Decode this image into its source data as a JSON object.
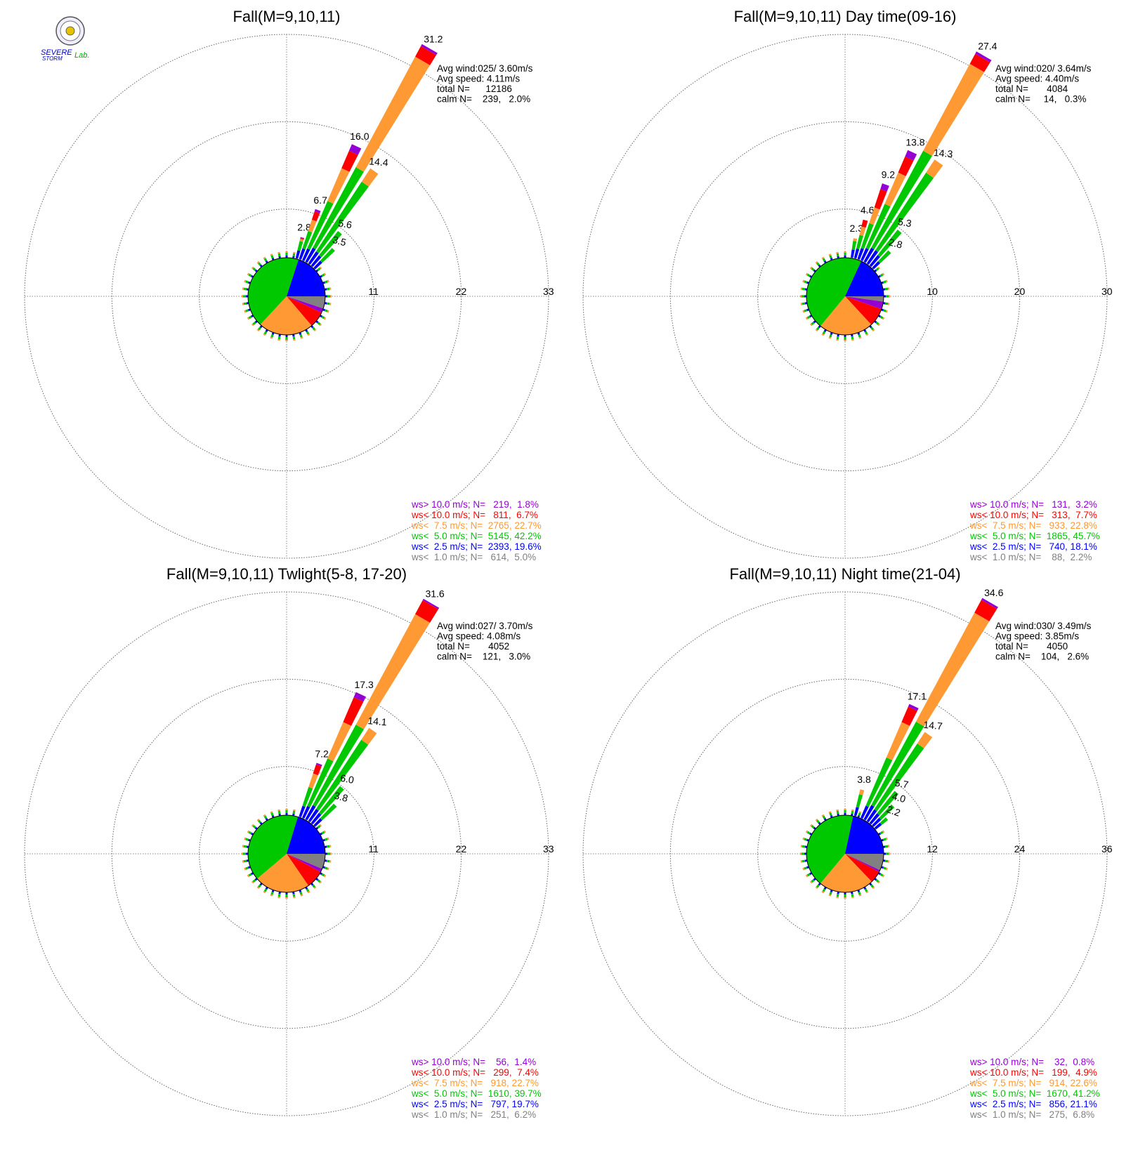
{
  "logo": {
    "text_top": "SEVERE",
    "text_bottom": "STORM",
    "text_lab": "Lab.",
    "icon": "seal-icon"
  },
  "colors": {
    "gt10": "#9400d3",
    "lt10": "#ff0000",
    "lt75": "#ff9933",
    "lt5": "#00c800",
    "lt25": "#0000ff",
    "lt1": "#808080"
  },
  "chart_data": [
    {
      "type": "polar-bar",
      "title": "Fall(M=9,10,11)",
      "rticks": [
        "11",
        "22",
        "33"
      ],
      "rmax": 33,
      "stats": [
        "Avg wind:025/ 3.60m/s",
        "Avg speed: 4.11m/s",
        "total N=      12186",
        "calm N=    239,   2.0%"
      ],
      "legend": [
        {
          "key": "gt10",
          "text": "ws> 10.0 m/s; N=   219,  1.8%"
        },
        {
          "key": "lt10",
          "text": "ws< 10.0 m/s; N=   811,  6.7%"
        },
        {
          "key": "lt75",
          "text": "ws<  7.5 m/s; N=  2765, 22.7%"
        },
        {
          "key": "lt5",
          "text": "ws<  5.0 m/s; N=  5145, 42.2%"
        },
        {
          "key": "lt25",
          "text": "ws<  2.5 m/s; N=  2393, 19.6%"
        },
        {
          "key": "lt1",
          "text": "ws<  1.0 m/s; N=   614,  5.0%"
        }
      ],
      "petals": [
        {
          "dir": 15,
          "total": 2.8,
          "parts": {
            "lt1": 0.1,
            "lt25": 1.0,
            "lt5": 1.2,
            "lt75": 0.3,
            "lt10": 0.15,
            "gt10": 0.05
          }
        },
        {
          "dir": 20,
          "total": 6.7,
          "parts": {
            "lt1": 0.1,
            "lt25": 1.4,
            "lt5": 2.3,
            "lt75": 1.5,
            "lt10": 1.1,
            "gt10": 0.3
          }
        },
        {
          "dir": 25,
          "total": 16.0,
          "parts": {
            "lt1": 0.1,
            "lt25": 1.6,
            "lt5": 6.5,
            "lt75": 4.5,
            "lt10": 2.4,
            "gt10": 0.9
          }
        },
        {
          "dir": 30,
          "total": 31.2,
          "parts": {
            "lt1": 0.1,
            "lt25": 2.0,
            "lt5": 11.5,
            "lt75": 15.8,
            "lt10": 1.5,
            "gt10": 0.3
          }
        },
        {
          "dir": 35,
          "total": 14.4,
          "parts": {
            "lt1": 0.1,
            "lt25": 1.8,
            "lt5": 10.5,
            "lt75": 2.0
          }
        },
        {
          "dir": 40,
          "total": 5.6,
          "parts": {
            "lt1": 0.1,
            "lt25": 1.6,
            "lt5": 3.9
          }
        },
        {
          "dir": 45,
          "total": 3.5,
          "parts": {
            "lt1": 0.1,
            "lt25": 1.2,
            "lt5": 2.2
          }
        }
      ],
      "pie_order": [
        "lt1",
        "gt10",
        "lt10",
        "lt75",
        "lt5",
        "lt25"
      ]
    },
    {
      "type": "polar-bar",
      "title": "Fall(M=9,10,11) Day time(09-16)",
      "rticks": [
        "10",
        "20",
        "30"
      ],
      "rmax": 30,
      "stats": [
        "Avg wind:020/ 3.64m/s",
        "Avg speed: 4.40m/s",
        "total N=       4084",
        "calm N=     14,   0.3%"
      ],
      "legend": [
        {
          "key": "gt10",
          "text": "ws> 10.0 m/s; N=   131,  3.2%"
        },
        {
          "key": "lt10",
          "text": "ws< 10.0 m/s; N=   313,  7.7%"
        },
        {
          "key": "lt75",
          "text": "ws<  7.5 m/s; N=   933, 22.8%"
        },
        {
          "key": "lt5",
          "text": "ws<  5.0 m/s; N=  1865, 45.7%"
        },
        {
          "key": "lt25",
          "text": "ws<  2.5 m/s; N=   740, 18.1%"
        },
        {
          "key": "lt1",
          "text": "ws<  1.0 m/s; N=    88,  2.2%"
        }
      ],
      "petals": [
        {
          "dir": 10,
          "total": 2.3,
          "parts": {
            "lt1": 0.1,
            "lt25": 0.9,
            "lt5": 1.0,
            "lt75": 0.3
          }
        },
        {
          "dir": 15,
          "total": 4.6,
          "parts": {
            "lt1": 0.1,
            "lt25": 1.1,
            "lt5": 1.6,
            "lt75": 1.0,
            "lt10": 0.8
          }
        },
        {
          "dir": 20,
          "total": 9.2,
          "parts": {
            "lt1": 0.1,
            "lt25": 1.3,
            "lt5": 3.0,
            "lt75": 1.9,
            "lt10": 2.2,
            "gt10": 0.7
          }
        },
        {
          "dir": 25,
          "total": 13.8,
          "parts": {
            "lt1": 0.1,
            "lt25": 1.5,
            "lt5": 5.5,
            "lt75": 3.9,
            "lt10": 2.0,
            "gt10": 0.8
          }
        },
        {
          "dir": 30,
          "total": 27.4,
          "parts": {
            "lt1": 0.1,
            "lt25": 1.8,
            "lt5": 12.6,
            "lt75": 11.3,
            "lt10": 1.3,
            "gt10": 0.3
          }
        },
        {
          "dir": 35,
          "total": 14.3,
          "parts": {
            "lt1": 0.1,
            "lt25": 1.8,
            "lt5": 10.6,
            "lt75": 1.8
          }
        },
        {
          "dir": 40,
          "total": 5.3,
          "parts": {
            "lt1": 0.1,
            "lt25": 1.5,
            "lt5": 3.7
          }
        },
        {
          "dir": 45,
          "total": 2.8,
          "parts": {
            "lt1": 0.1,
            "lt25": 1.0,
            "lt5": 1.7
          }
        }
      ],
      "pie_order": [
        "lt1",
        "gt10",
        "lt10",
        "lt75",
        "lt5",
        "lt25"
      ]
    },
    {
      "type": "polar-bar",
      "title": "Fall(M=9,10,11) Twlight(5-8, 17-20)",
      "rticks": [
        "11",
        "22",
        "33"
      ],
      "rmax": 33,
      "stats": [
        "Avg wind:027/ 3.70m/s",
        "Avg speed: 4.08m/s",
        "total N=       4052",
        "calm N=    121,   3.0%"
      ],
      "legend": [
        {
          "key": "gt10",
          "text": "ws> 10.0 m/s; N=    56,  1.4%"
        },
        {
          "key": "lt10",
          "text": "ws< 10.0 m/s; N=   299,  7.4%"
        },
        {
          "key": "lt75",
          "text": "ws<  7.5 m/s; N=   918, 22.7%"
        },
        {
          "key": "lt5",
          "text": "ws<  5.0 m/s; N=  1610, 39.7%"
        },
        {
          "key": "lt25",
          "text": "ws<  2.5 m/s; N=   797, 19.7%"
        },
        {
          "key": "lt1",
          "text": "ws<  1.0 m/s; N=   251,  6.2%"
        }
      ],
      "petals": [
        {
          "dir": 20,
          "total": 7.2,
          "parts": {
            "lt1": 0.1,
            "lt25": 1.4,
            "lt5": 2.5,
            "lt75": 1.8,
            "lt10": 1.2,
            "gt10": 0.2
          }
        },
        {
          "dir": 25,
          "total": 17.3,
          "parts": {
            "lt1": 0.1,
            "lt25": 1.6,
            "lt5": 6.5,
            "lt75": 5.0,
            "lt10": 3.4,
            "gt10": 0.7
          }
        },
        {
          "dir": 30,
          "total": 31.6,
          "parts": {
            "lt1": 0.1,
            "lt25": 2.0,
            "lt5": 11.5,
            "lt75": 15.8,
            "lt10": 2.0,
            "gt10": 0.2
          }
        },
        {
          "dir": 35,
          "total": 14.1,
          "parts": {
            "lt1": 0.1,
            "lt25": 1.8,
            "lt5": 10.4,
            "lt75": 1.8
          }
        },
        {
          "dir": 40,
          "total": 6.0,
          "parts": {
            "lt1": 0.1,
            "lt25": 1.6,
            "lt5": 4.3
          }
        },
        {
          "dir": 45,
          "total": 3.8,
          "parts": {
            "lt1": 0.1,
            "lt25": 1.2,
            "lt5": 2.5
          }
        }
      ],
      "pie_order": [
        "lt1",
        "gt10",
        "lt10",
        "lt75",
        "lt5",
        "lt25"
      ]
    },
    {
      "type": "polar-bar",
      "title": "Fall(M=9,10,11) Night time(21-04)",
      "rticks": [
        "12",
        "24",
        "36"
      ],
      "rmax": 36,
      "stats": [
        "Avg wind:030/ 3.49m/s",
        "Avg speed: 3.85m/s",
        "total N=       4050",
        "calm N=    104,   2.6%"
      ],
      "legend": [
        {
          "key": "gt10",
          "text": "ws> 10.0 m/s; N=    32,  0.8%"
        },
        {
          "key": "lt10",
          "text": "ws< 10.0 m/s; N=   199,  4.9%"
        },
        {
          "key": "lt75",
          "text": "ws<  7.5 m/s; N=   914, 22.6%"
        },
        {
          "key": "lt5",
          "text": "ws<  5.0 m/s; N=  1670, 41.2%"
        },
        {
          "key": "lt25",
          "text": "ws<  2.5 m/s; N=   856, 21.1%"
        },
        {
          "key": "lt1",
          "text": "ws<  1.0 m/s; N=   275,  6.8%"
        }
      ],
      "petals": [
        {
          "dir": 15,
          "total": 3.8,
          "parts": {
            "lt1": 0.1,
            "lt25": 1.2,
            "lt5": 1.8,
            "lt75": 0.7
          }
        },
        {
          "dir": 25,
          "total": 17.1,
          "parts": {
            "lt1": 0.1,
            "lt25": 1.8,
            "lt5": 7.2,
            "lt75": 5.3,
            "lt10": 2.3,
            "gt10": 0.4
          }
        },
        {
          "dir": 30,
          "total": 34.6,
          "parts": {
            "lt1": 0.1,
            "lt25": 2.2,
            "lt5": 13.0,
            "lt75": 17.0,
            "lt10": 2.0,
            "gt10": 0.3
          }
        },
        {
          "dir": 35,
          "total": 14.7,
          "parts": {
            "lt1": 0.1,
            "lt25": 1.9,
            "lt5": 10.8,
            "lt75": 1.9
          }
        },
        {
          "dir": 40,
          "total": 5.7,
          "parts": {
            "lt1": 0.1,
            "lt25": 1.7,
            "lt5": 3.9
          }
        },
        {
          "dir": 45,
          "total": 4.0,
          "parts": {
            "lt1": 0.1,
            "lt25": 1.4,
            "lt5": 2.5
          }
        },
        {
          "dir": 50,
          "total": 2.2,
          "parts": {
            "lt1": 0.1,
            "lt25": 1.0,
            "lt5": 1.1
          }
        }
      ],
      "pie_order": [
        "lt1",
        "gt10",
        "lt10",
        "lt75",
        "lt5",
        "lt25"
      ]
    }
  ]
}
